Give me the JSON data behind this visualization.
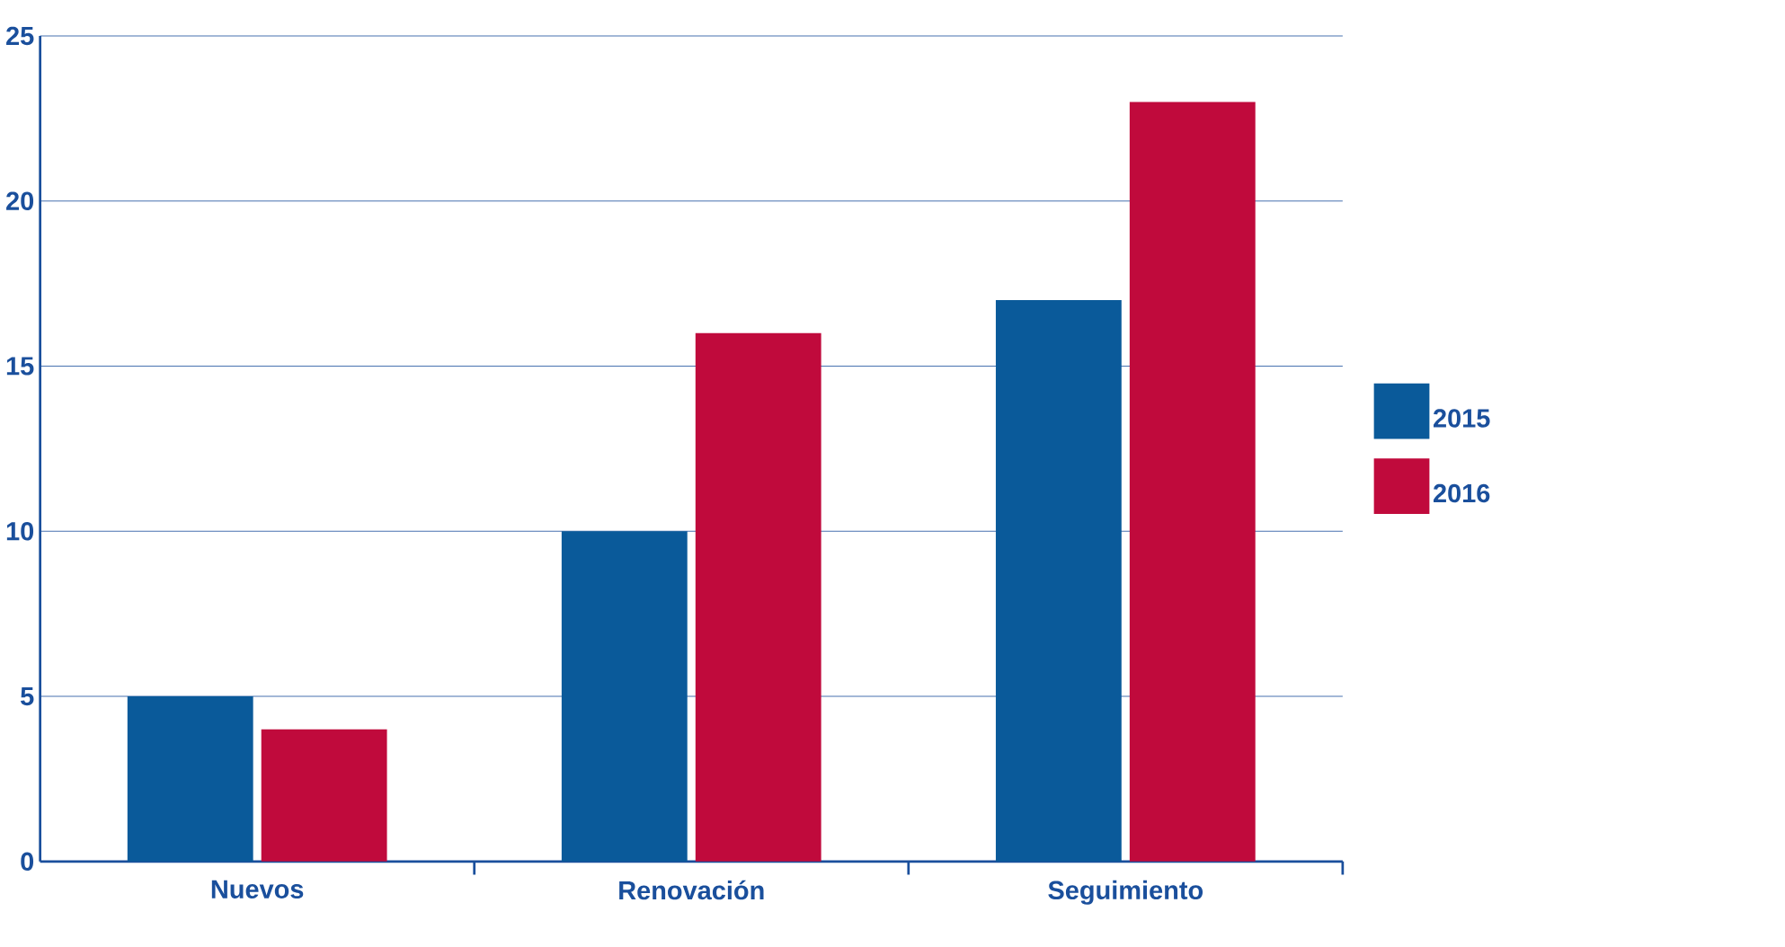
{
  "chart_data": {
    "type": "bar",
    "categories": [
      "Nuevos",
      "Renovación",
      "Seguimiento"
    ],
    "series": [
      {
        "name": "2015",
        "color": "#0a5a9a",
        "values": [
          5,
          10,
          17
        ]
      },
      {
        "name": "2016",
        "color": "#c00a3c",
        "values": [
          4,
          16,
          23
        ]
      }
    ],
    "ylim": [
      0,
      25
    ],
    "yticks": [
      0,
      5,
      10,
      15,
      20,
      25
    ],
    "grid": "y",
    "legend": "right"
  }
}
